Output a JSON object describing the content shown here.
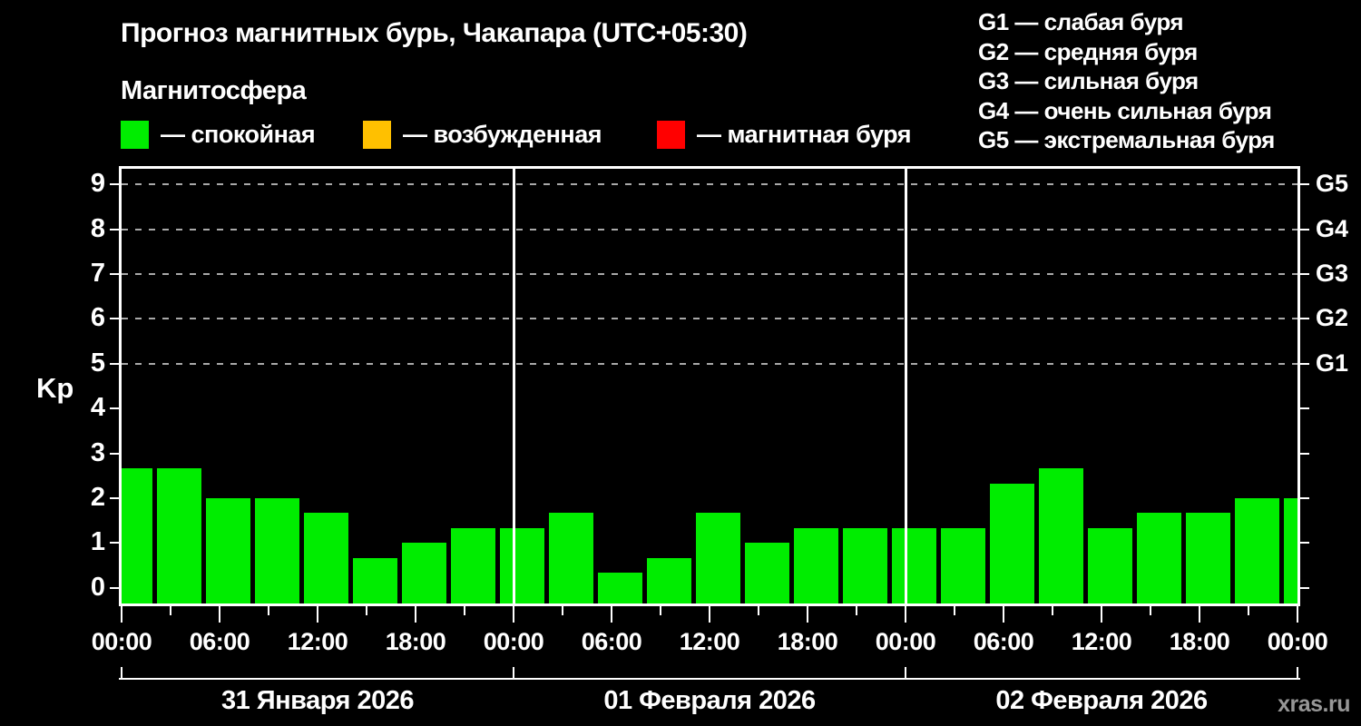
{
  "header": {
    "title": "Прогноз магнитных бурь, Чакапара (UTC+05:30)",
    "subtitle": "Магнитосфера",
    "watermark": "xras.ru"
  },
  "legend": {
    "items": [
      {
        "label": "— спокойная",
        "color": "#00ed00"
      },
      {
        "label": "— возбужденная",
        "color": "#ffc000"
      },
      {
        "label": "— магнитная буря",
        "color": "#ff0000"
      }
    ]
  },
  "storm_scale": {
    "items": [
      {
        "text": "G1 — слабая буря"
      },
      {
        "text": "G2 — средняя буря"
      },
      {
        "text": "G3 — сильная буря"
      },
      {
        "text": "G4 — очень сильная буря"
      },
      {
        "text": "G5 — экстремальная буря"
      }
    ]
  },
  "chart_data": {
    "type": "bar",
    "title": "Прогноз магнитных бурь, Чакапара (UTC+05:30)",
    "ylabel": "Kp",
    "x_range_hours": [
      0,
      72
    ],
    "y_range_kp": [
      -0.35,
      9.35
    ],
    "y_ticks": [
      0,
      1,
      2,
      3,
      4,
      5,
      6,
      7,
      8,
      9
    ],
    "gridlines_kp": [
      5,
      6,
      7,
      8,
      9
    ],
    "grid": "dashed-top-half",
    "right_axis": [
      {
        "kp": 5,
        "label": "G1"
      },
      {
        "kp": 6,
        "label": "G2"
      },
      {
        "kp": 7,
        "label": "G3"
      },
      {
        "kp": 8,
        "label": "G4"
      },
      {
        "kp": 9,
        "label": "G5"
      }
    ],
    "x_ticks_major": [
      {
        "hour": 0,
        "label": "00:00"
      },
      {
        "hour": 6,
        "label": "06:00"
      },
      {
        "hour": 12,
        "label": "12:00"
      },
      {
        "hour": 18,
        "label": "18:00"
      },
      {
        "hour": 24,
        "label": "00:00"
      },
      {
        "hour": 30,
        "label": "06:00"
      },
      {
        "hour": 36,
        "label": "12:00"
      },
      {
        "hour": 42,
        "label": "18:00"
      },
      {
        "hour": 48,
        "label": "00:00"
      },
      {
        "hour": 54,
        "label": "06:00"
      },
      {
        "hour": 60,
        "label": "12:00"
      },
      {
        "hour": 66,
        "label": "18:00"
      },
      {
        "hour": 72,
        "label": "00:00"
      }
    ],
    "x_ticks_minor_hours": [
      3,
      9,
      15,
      21,
      27,
      33,
      39,
      45,
      51,
      57,
      63,
      69
    ],
    "days": [
      {
        "label": "31 Января 2026",
        "start_hour": 0,
        "end_hour": 24
      },
      {
        "label": "01 Февраля 2026",
        "start_hour": 24,
        "end_hour": 48
      },
      {
        "label": "02 Февраля 2026",
        "start_hour": 48,
        "end_hour": 72
      }
    ],
    "status_colors": {
      "quiet": "#00ed00",
      "excited": "#ffc000",
      "storm": "#ff0000"
    },
    "bars": [
      {
        "start_hour": 0,
        "end_hour": 2,
        "kp": 2.67,
        "status": "quiet"
      },
      {
        "start_hour": 2,
        "end_hour": 5,
        "kp": 2.67,
        "status": "quiet"
      },
      {
        "start_hour": 5,
        "end_hour": 8,
        "kp": 2.0,
        "status": "quiet"
      },
      {
        "start_hour": 8,
        "end_hour": 11,
        "kp": 2.0,
        "status": "quiet"
      },
      {
        "start_hour": 11,
        "end_hour": 14,
        "kp": 1.67,
        "status": "quiet"
      },
      {
        "start_hour": 14,
        "end_hour": 17,
        "kp": 0.67,
        "status": "quiet"
      },
      {
        "start_hour": 17,
        "end_hour": 20,
        "kp": 1.0,
        "status": "quiet"
      },
      {
        "start_hour": 20,
        "end_hour": 23,
        "kp": 1.33,
        "status": "quiet"
      },
      {
        "start_hour": 23,
        "end_hour": 26,
        "kp": 1.33,
        "status": "quiet"
      },
      {
        "start_hour": 26,
        "end_hour": 29,
        "kp": 1.67,
        "status": "quiet"
      },
      {
        "start_hour": 29,
        "end_hour": 32,
        "kp": 0.33,
        "status": "quiet"
      },
      {
        "start_hour": 32,
        "end_hour": 35,
        "kp": 0.67,
        "status": "quiet"
      },
      {
        "start_hour": 35,
        "end_hour": 38,
        "kp": 1.67,
        "status": "quiet"
      },
      {
        "start_hour": 38,
        "end_hour": 41,
        "kp": 1.0,
        "status": "quiet"
      },
      {
        "start_hour": 41,
        "end_hour": 44,
        "kp": 1.33,
        "status": "quiet"
      },
      {
        "start_hour": 44,
        "end_hour": 47,
        "kp": 1.33,
        "status": "quiet"
      },
      {
        "start_hour": 47,
        "end_hour": 50,
        "kp": 1.33,
        "status": "quiet"
      },
      {
        "start_hour": 50,
        "end_hour": 53,
        "kp": 1.33,
        "status": "quiet"
      },
      {
        "start_hour": 53,
        "end_hour": 56,
        "kp": 2.33,
        "status": "quiet"
      },
      {
        "start_hour": 56,
        "end_hour": 59,
        "kp": 2.67,
        "status": "quiet"
      },
      {
        "start_hour": 59,
        "end_hour": 62,
        "kp": 1.33,
        "status": "quiet"
      },
      {
        "start_hour": 62,
        "end_hour": 65,
        "kp": 1.67,
        "status": "quiet"
      },
      {
        "start_hour": 65,
        "end_hour": 68,
        "kp": 1.67,
        "status": "quiet"
      },
      {
        "start_hour": 68,
        "end_hour": 71,
        "kp": 2.0,
        "status": "quiet"
      },
      {
        "start_hour": 71,
        "end_hour": 72,
        "kp": 2.0,
        "status": "quiet"
      }
    ]
  }
}
